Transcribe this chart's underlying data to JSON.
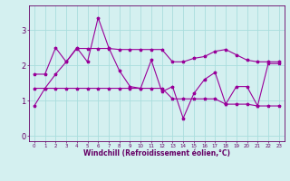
{
  "line1_x": [
    0,
    1,
    2,
    3,
    4,
    5,
    6,
    7,
    8,
    9,
    10,
    11,
    12,
    13,
    14,
    15,
    16,
    17,
    18,
    19,
    20,
    21,
    22,
    23
  ],
  "line1_y": [
    0.85,
    1.35,
    1.75,
    2.1,
    2.5,
    2.1,
    3.35,
    2.5,
    1.85,
    1.4,
    1.35,
    2.15,
    1.25,
    1.4,
    0.5,
    1.2,
    1.6,
    1.8,
    0.9,
    1.4,
    1.4,
    0.85,
    2.05,
    2.05
  ],
  "line2_x": [
    0,
    1,
    2,
    3,
    4,
    5,
    6,
    7,
    8,
    9,
    10,
    11,
    12,
    13,
    14,
    15,
    16,
    17,
    18,
    19,
    20,
    21,
    22,
    23
  ],
  "line2_y": [
    1.75,
    1.75,
    2.5,
    2.1,
    2.48,
    2.48,
    2.48,
    2.48,
    2.45,
    2.45,
    2.45,
    2.45,
    2.45,
    2.1,
    2.1,
    2.2,
    2.25,
    2.4,
    2.45,
    2.3,
    2.15,
    2.1,
    2.1,
    2.1
  ],
  "line3_x": [
    0,
    1,
    2,
    3,
    4,
    5,
    6,
    7,
    8,
    9,
    10,
    11,
    12,
    13,
    14,
    15,
    16,
    17,
    18,
    19,
    20,
    21,
    22,
    23
  ],
  "line3_y": [
    1.35,
    1.35,
    1.35,
    1.35,
    1.35,
    1.35,
    1.35,
    1.35,
    1.35,
    1.35,
    1.35,
    1.35,
    1.35,
    1.05,
    1.05,
    1.05,
    1.05,
    1.05,
    0.9,
    0.9,
    0.9,
    0.85,
    0.85,
    0.85
  ],
  "line_color": "#990099",
  "bg_color": "#d4f0f0",
  "grid_color": "#aadddd",
  "xlabel": "Windchill (Refroidissement éolien,°C)",
  "xlabel_color": "#660066",
  "tick_color": "#660066",
  "xlim": [
    -0.5,
    23.5
  ],
  "ylim": [
    -0.15,
    3.7
  ],
  "yticks": [
    0,
    1,
    2,
    3
  ],
  "xticks": [
    0,
    1,
    2,
    3,
    4,
    5,
    6,
    7,
    8,
    9,
    10,
    11,
    12,
    13,
    14,
    15,
    16,
    17,
    18,
    19,
    20,
    21,
    22,
    23
  ]
}
